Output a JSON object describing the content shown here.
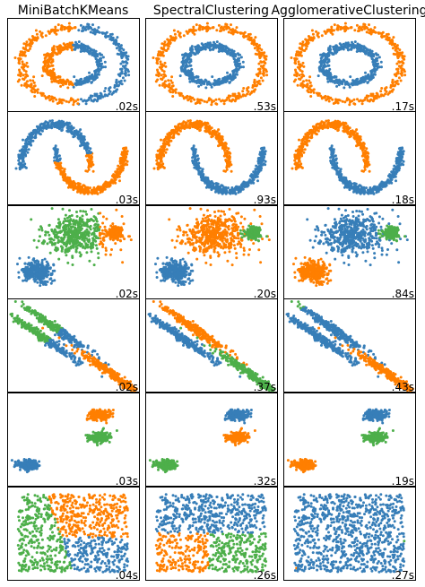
{
  "columns": [
    "MiniBatchKMeans",
    "SpectralClustering",
    "AgglomerativeClustering"
  ],
  "colors": {
    "blue": "#377eb8",
    "orange": "#ff7f00",
    "green": "#4daf4a"
  },
  "chart_data": {
    "type": "scatter",
    "axes": "hidden",
    "grid": false,
    "rows": [
      {
        "dataset": "noisy_circles",
        "xlim": [
          -1.25,
          1.25
        ],
        "ylim": [
          -1.25,
          1.25
        ],
        "panels": [
          {
            "algorithm": "MiniBatchKMeans",
            "time_label": ".02s",
            "clusters": [
              {
                "color": "orange",
                "points": "outer-ring x<0.1 + inner-ring x<0"
              },
              {
                "color": "blue",
                "points": "outer-ring x>=0.1 + inner-ring x>=0"
              }
            ]
          },
          {
            "algorithm": "SpectralClustering",
            "time_label": ".53s",
            "clusters": [
              {
                "color": "orange",
                "points": "outer-ring r=1.0"
              },
              {
                "color": "blue",
                "points": "inner-ring r=0.5"
              }
            ]
          },
          {
            "algorithm": "AgglomerativeClustering",
            "time_label": ".17s",
            "clusters": [
              {
                "color": "orange",
                "points": "outer-ring r=1.0"
              },
              {
                "color": "blue",
                "points": "inner-ring r=0.5"
              }
            ]
          }
        ]
      },
      {
        "dataset": "noisy_moons",
        "xlim": [
          -1.4,
          2.4
        ],
        "ylim": [
          -0.8,
          1.3
        ],
        "panels": [
          {
            "algorithm": "MiniBatchKMeans",
            "time_label": ".03s",
            "clusters": [
              {
                "color": "blue",
                "points": "upper-moon mostly"
              },
              {
                "color": "orange",
                "points": "lower-moon + right tip of upper"
              }
            ]
          },
          {
            "algorithm": "SpectralClustering",
            "time_label": ".93s",
            "clusters": [
              {
                "color": "orange",
                "points": "upper-moon"
              },
              {
                "color": "blue",
                "points": "lower-moon"
              }
            ]
          },
          {
            "algorithm": "AgglomerativeClustering",
            "time_label": ".18s",
            "clusters": [
              {
                "color": "orange",
                "points": "upper-moon"
              },
              {
                "color": "blue",
                "points": "lower-moon"
              }
            ]
          }
        ]
      },
      {
        "dataset": "varied_blobs",
        "xlim": [
          -3,
          3
        ],
        "ylim": [
          -2.4,
          2.4
        ],
        "panels": [
          {
            "algorithm": "MiniBatchKMeans",
            "time_label": ".02s",
            "clusters": [
              {
                "color": "green",
                "points": "wide-blob left part"
              },
              {
                "color": "orange",
                "points": "wide-blob right edge + right-blob"
              },
              {
                "color": "blue",
                "points": "bottom-left dense blob"
              }
            ]
          },
          {
            "algorithm": "SpectralClustering",
            "time_label": ".20s",
            "clusters": [
              {
                "color": "orange",
                "points": "wide-blob"
              },
              {
                "color": "green",
                "points": "right-blob"
              },
              {
                "color": "blue",
                "points": "bottom-left dense blob"
              }
            ]
          },
          {
            "algorithm": "AgglomerativeClustering",
            "time_label": ".84s",
            "clusters": [
              {
                "color": "blue",
                "points": "wide-blob"
              },
              {
                "color": "green",
                "points": "right-blob"
              },
              {
                "color": "orange",
                "points": "bottom-left blob"
              }
            ]
          }
        ]
      },
      {
        "dataset": "aniso",
        "xlim": [
          -2.4,
          3.0
        ],
        "ylim": [
          -2.4,
          3.0
        ],
        "panels": [
          {
            "algorithm": "MiniBatchKMeans",
            "time_label": ".02s",
            "clusters": [
              {
                "color": "green",
                "points": "upper parts of two left bands"
              },
              {
                "color": "blue",
                "points": "lower parts of two left bands"
              },
              {
                "color": "orange",
                "points": "right band"
              }
            ]
          },
          {
            "algorithm": "SpectralClustering",
            "time_label": ".37s",
            "clusters": [
              {
                "color": "blue",
                "points": "left band"
              },
              {
                "color": "orange",
                "points": "middle band"
              },
              {
                "color": "green",
                "points": "right band"
              }
            ]
          },
          {
            "algorithm": "AgglomerativeClustering",
            "time_label": ".43s",
            "clusters": [
              {
                "color": "blue",
                "points": "two left bands"
              },
              {
                "color": "green",
                "points": "small top tip"
              },
              {
                "color": "orange",
                "points": "right band"
              }
            ]
          }
        ]
      },
      {
        "dataset": "blobs",
        "xlim": [
          -2.5,
          2.5
        ],
        "ylim": [
          -2.5,
          2.5
        ],
        "panels": [
          {
            "algorithm": "MiniBatchKMeans",
            "time_label": ".03s",
            "clusters": [
              {
                "color": "orange",
                "points": "blob at (1.0, 1.3)"
              },
              {
                "color": "green",
                "points": "blob at (1.0, 0.1)"
              },
              {
                "color": "blue",
                "points": "blob at (-1.7, -1.4)"
              }
            ]
          },
          {
            "algorithm": "SpectralClustering",
            "time_label": ".32s",
            "clusters": [
              {
                "color": "blue",
                "points": "blob at (1.0, 1.3)"
              },
              {
                "color": "orange",
                "points": "blob at (1.0, 0.1)"
              },
              {
                "color": "green",
                "points": "blob at (-1.7, -1.4)"
              }
            ]
          },
          {
            "algorithm": "AgglomerativeClustering",
            "time_label": ".19s",
            "clusters": [
              {
                "color": "blue",
                "points": "blob at (1.0, 1.3)"
              },
              {
                "color": "green",
                "points": "blob at (1.0, 0.1)"
              },
              {
                "color": "orange",
                "points": "blob at (-1.7, -1.4)"
              }
            ]
          }
        ]
      },
      {
        "dataset": "no_structure",
        "xlim": [
          -0.1,
          1.1
        ],
        "ylim": [
          -0.1,
          1.1
        ],
        "panels": [
          {
            "algorithm": "MiniBatchKMeans",
            "time_label": ".04s",
            "clusters": [
              {
                "color": "green",
                "points": "left wedge"
              },
              {
                "color": "orange",
                "points": "upper-right region"
              },
              {
                "color": "blue",
                "points": "lower-right region"
              }
            ]
          },
          {
            "algorithm": "SpectralClustering",
            "time_label": ".26s",
            "clusters": [
              {
                "color": "blue",
                "points": "top half"
              },
              {
                "color": "orange",
                "points": "bottom-left quadrant"
              },
              {
                "color": "green",
                "points": "bottom-right quadrant"
              }
            ]
          },
          {
            "algorithm": "AgglomerativeClustering",
            "time_label": ".27s",
            "clusters": [
              {
                "color": "blue",
                "points": "almost all points"
              },
              {
                "color": "orange",
                "points": "one point bottom-left"
              },
              {
                "color": "green",
                "points": "one point right edge"
              }
            ]
          }
        ]
      }
    ]
  }
}
